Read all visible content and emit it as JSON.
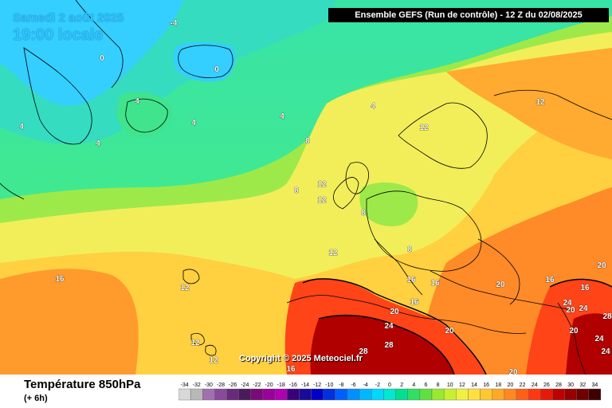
{
  "map": {
    "date_label": "Samedi 2 août 2025",
    "time_label": "19:00 locale",
    "model_title": "Ensemble GEFS  (Run de contrôle)   -  12 Z du 02/08/2025",
    "copyright": "Copyright © 2025 Meteociel.fr",
    "variable_title": "Température 850hPa",
    "forecast_offset": "(+ 6h)",
    "palette": {
      "cold_0": "#2fd0ff",
      "cold_4": "#35e6a0",
      "mild_8": "#56ef6a",
      "mid_12": "#f2ee5a",
      "warm_16": "#ffd040",
      "hot_20": "#ff8a28",
      "hotter_24": "#ff3a10",
      "hottest_28": "#b00000"
    },
    "isotherm_labels": [
      {
        "text": "-4"
      },
      {
        "text": "0"
      },
      {
        "text": "0"
      },
      {
        "text": "4"
      },
      {
        "text": "4"
      },
      {
        "text": "4"
      },
      {
        "text": "4"
      },
      {
        "text": "4"
      },
      {
        "text": "4"
      },
      {
        "text": "8"
      },
      {
        "text": "8"
      },
      {
        "text": "8"
      },
      {
        "text": "8"
      },
      {
        "text": "12"
      },
      {
        "text": "12"
      },
      {
        "text": "12"
      },
      {
        "text": "12"
      },
      {
        "text": "12"
      },
      {
        "text": "12"
      },
      {
        "text": "12"
      },
      {
        "text": "12"
      },
      {
        "text": "16"
      },
      {
        "text": "16"
      },
      {
        "text": "16"
      },
      {
        "text": "16"
      },
      {
        "text": "16"
      },
      {
        "text": "16"
      },
      {
        "text": "16"
      },
      {
        "text": "20"
      },
      {
        "text": "20"
      },
      {
        "text": "20"
      },
      {
        "text": "20"
      },
      {
        "text": "20"
      },
      {
        "text": "20"
      },
      {
        "text": "20"
      },
      {
        "text": "24"
      },
      {
        "text": "24"
      },
      {
        "text": "24"
      },
      {
        "text": "24"
      },
      {
        "text": "24"
      },
      {
        "text": "28"
      },
      {
        "text": "28"
      },
      {
        "text": "28"
      }
    ],
    "legend": {
      "values": [
        "-34",
        "-32",
        "-30",
        "-28",
        "-26",
        "-24",
        "-22",
        "-20",
        "-18",
        "-16",
        "-14",
        "-12",
        "-10",
        "-8",
        "-6",
        "-4",
        "-2",
        "0",
        "2",
        "4",
        "6",
        "8",
        "10",
        "12",
        "14",
        "16",
        "18",
        "20",
        "22",
        "24",
        "26",
        "28",
        "30",
        "32",
        "34"
      ],
      "colors": [
        "#d8d8d8",
        "#b8b8b8",
        "#a070b0",
        "#8a4a9a",
        "#6a2a7a",
        "#4a1a5a",
        "#7a0a7a",
        "#9a009a",
        "#b000b0",
        "#3a007a",
        "#1a0a9a",
        "#0000c8",
        "#0030e0",
        "#0060ff",
        "#0090ff",
        "#00b8ff",
        "#00d8ff",
        "#00e8d0",
        "#00e090",
        "#30e060",
        "#60e040",
        "#98ea30",
        "#c8f030",
        "#f0f040",
        "#ffe040",
        "#ffc830",
        "#ffa828",
        "#ff8820",
        "#ff6018",
        "#ff3810",
        "#e81808",
        "#c00000",
        "#980000",
        "#700000",
        "#400000"
      ]
    }
  }
}
